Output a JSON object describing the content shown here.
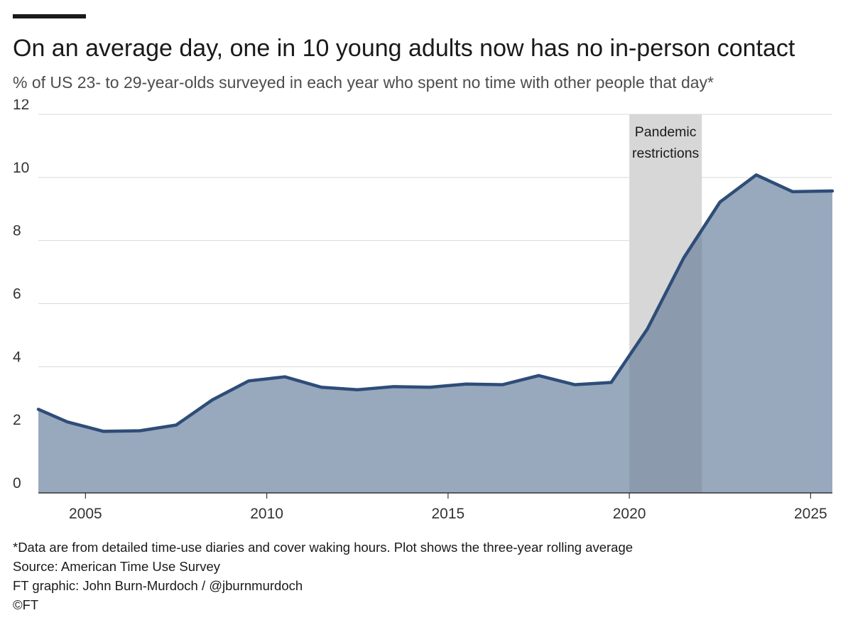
{
  "header": {
    "title": "On an average day, one in 10 young adults now has no in-person contact",
    "subtitle": "% of US 23- to 29-year-olds surveyed in each year who spent no time with other people that day*"
  },
  "chart_data": {
    "type": "area",
    "title": "On an average day, one in 10 young adults now has no in-person contact",
    "subtitle": "% of US 23- to 29-year-olds surveyed in each year who spent no time with other people that day*",
    "xlabel": "",
    "ylabel": "",
    "xlim": [
      2003.7,
      2025.6
    ],
    "ylim": [
      0,
      12
    ],
    "x_ticks": [
      2005,
      2010,
      2015,
      2020,
      2025
    ],
    "y_ticks": [
      0,
      2,
      4,
      6,
      8,
      10,
      12
    ],
    "grid": true,
    "series": [
      {
        "x": [
          2003.7,
          2004.5,
          2005.5,
          2006.5,
          2007.5,
          2008.5,
          2009.5,
          2010.5,
          2011.5,
          2012.5,
          2013.5,
          2014.5,
          2015.5,
          2016.5,
          2017.5,
          2018.5,
          2019.5,
          2020.5,
          2021.5,
          2022.5,
          2023.5,
          2024.5,
          2025.6
        ],
        "values": [
          2.65,
          2.25,
          1.95,
          1.97,
          2.15,
          2.95,
          3.55,
          3.68,
          3.35,
          3.27,
          3.37,
          3.35,
          3.45,
          3.43,
          3.72,
          3.43,
          3.5,
          5.2,
          7.45,
          9.22,
          10.08,
          9.55,
          9.57
        ]
      }
    ],
    "annotations": [
      {
        "type": "shaded_band",
        "x_start": 2020.0,
        "x_end": 2022.0,
        "label_lines": [
          "Pandemic",
          "restrictions"
        ]
      }
    ],
    "colors": {
      "line": "#2e4d78",
      "area": "#98a9bd",
      "band": "#d7d7d7",
      "band_overlap": "#8b9aad",
      "grid": "#d9d9d9",
      "axis": "#333333"
    }
  },
  "footer": {
    "note": "*Data are from detailed time-use diaries and cover waking hours. Plot shows the three-year rolling average",
    "source": "Source: American Time Use Survey",
    "credit": "FT graphic: John Burn-Murdoch / @jburnmurdoch",
    "copyright": "©FT"
  }
}
